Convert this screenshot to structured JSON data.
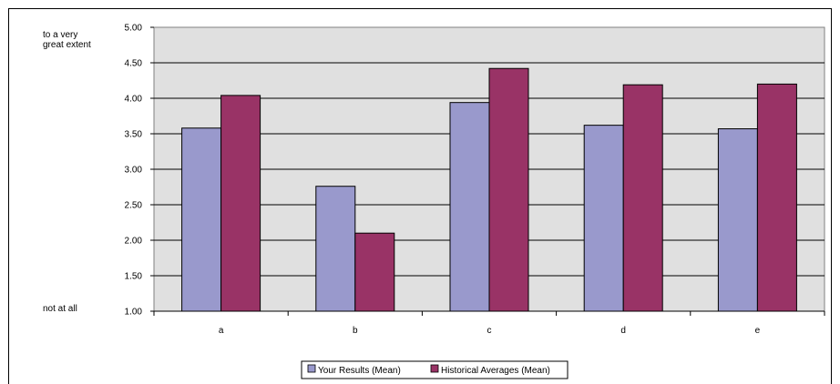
{
  "chart_data": {
    "type": "bar",
    "categories": [
      "a",
      "b",
      "c",
      "d",
      "e"
    ],
    "series": [
      {
        "name": "Your Results (Mean)",
        "color": "#9999cc",
        "values": [
          3.58,
          2.76,
          3.94,
          3.62,
          3.57
        ]
      },
      {
        "name": "Historical Averages (Mean)",
        "color": "#993366",
        "values": [
          4.04,
          2.1,
          4.42,
          4.19,
          4.2
        ]
      }
    ],
    "ylim": [
      1.0,
      5.0
    ],
    "y_ticks": [
      "1.00",
      "1.50",
      "2.00",
      "2.50",
      "3.00",
      "3.50",
      "4.00",
      "4.50",
      "5.00"
    ],
    "y_anchor_top": [
      "to a very",
      "great extent"
    ],
    "y_anchor_bottom": "not at all",
    "plot_background": "#e0e0e0",
    "gridlines": true,
    "legend_position": "bottom"
  }
}
